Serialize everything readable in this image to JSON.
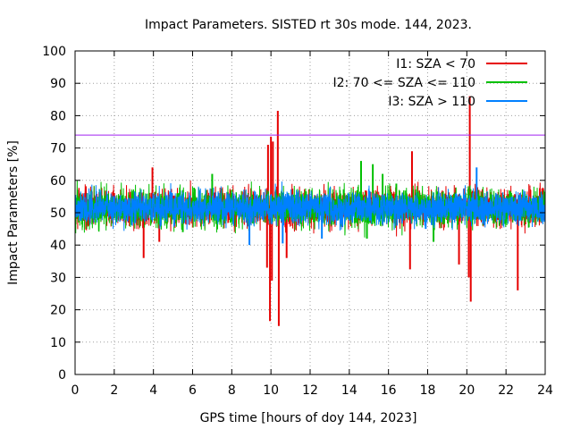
{
  "chart_data": {
    "type": "line",
    "title": "Impact Parameters. SISTED rt 30s mode. 144, 2023.",
    "xlabel": "GPS time [hours of doy 144, 2023]",
    "ylabel": "Impact Parameters [%]",
    "xlim": [
      0,
      24
    ],
    "ylim": [
      0,
      100
    ],
    "x_ticks": [
      "0",
      "2",
      "4",
      "6",
      "8",
      "10",
      "12",
      "14",
      "16",
      "18",
      "20",
      "22",
      "24"
    ],
    "y_ticks": [
      "0",
      "10",
      "20",
      "30",
      "40",
      "50",
      "60",
      "70",
      "80",
      "90",
      "100"
    ],
    "grid": true,
    "legend_position": "top-right",
    "threshold": {
      "value": 74,
      "color": "#a020f0"
    },
    "series": [
      {
        "name": "I1: SZA < 70",
        "color": "#e60000",
        "band": [
          44,
          59
        ],
        "spikes": [
          {
            "x": 3.5,
            "y": 36
          },
          {
            "x": 3.95,
            "y": 64
          },
          {
            "x": 4.3,
            "y": 41
          },
          {
            "x": 9.8,
            "y": 33
          },
          {
            "x": 9.85,
            "y": 71
          },
          {
            "x": 9.95,
            "y": 16.5
          },
          {
            "x": 10.0,
            "y": 73.5
          },
          {
            "x": 10.05,
            "y": 29
          },
          {
            "x": 10.1,
            "y": 72
          },
          {
            "x": 10.35,
            "y": 81.5
          },
          {
            "x": 10.4,
            "y": 15
          },
          {
            "x": 10.8,
            "y": 36
          },
          {
            "x": 17.1,
            "y": 32.5
          },
          {
            "x": 17.2,
            "y": 69
          },
          {
            "x": 19.6,
            "y": 34
          },
          {
            "x": 20.1,
            "y": 30
          },
          {
            "x": 20.15,
            "y": 86
          },
          {
            "x": 20.2,
            "y": 22.5
          },
          {
            "x": 22.6,
            "y": 26
          }
        ]
      },
      {
        "name": "I2: 70 <= SZA <= 110",
        "color": "#00c000",
        "band": [
          44,
          59
        ],
        "spikes": [
          {
            "x": 5.5,
            "y": 44
          },
          {
            "x": 7.0,
            "y": 62
          },
          {
            "x": 14.6,
            "y": 66
          },
          {
            "x": 14.9,
            "y": 42
          },
          {
            "x": 15.2,
            "y": 65
          },
          {
            "x": 15.7,
            "y": 62
          },
          {
            "x": 16.4,
            "y": 59
          },
          {
            "x": 18.3,
            "y": 41
          }
        ]
      },
      {
        "name": "I3: SZA > 110",
        "color": "#0080ff",
        "band": [
          45,
          58
        ],
        "spikes": [
          {
            "x": 8.9,
            "y": 40
          },
          {
            "x": 10.6,
            "y": 40.5
          },
          {
            "x": 12.6,
            "y": 42
          },
          {
            "x": 17.9,
            "y": 45
          },
          {
            "x": 19.5,
            "y": 49
          },
          {
            "x": 20.5,
            "y": 64
          }
        ]
      }
    ]
  }
}
